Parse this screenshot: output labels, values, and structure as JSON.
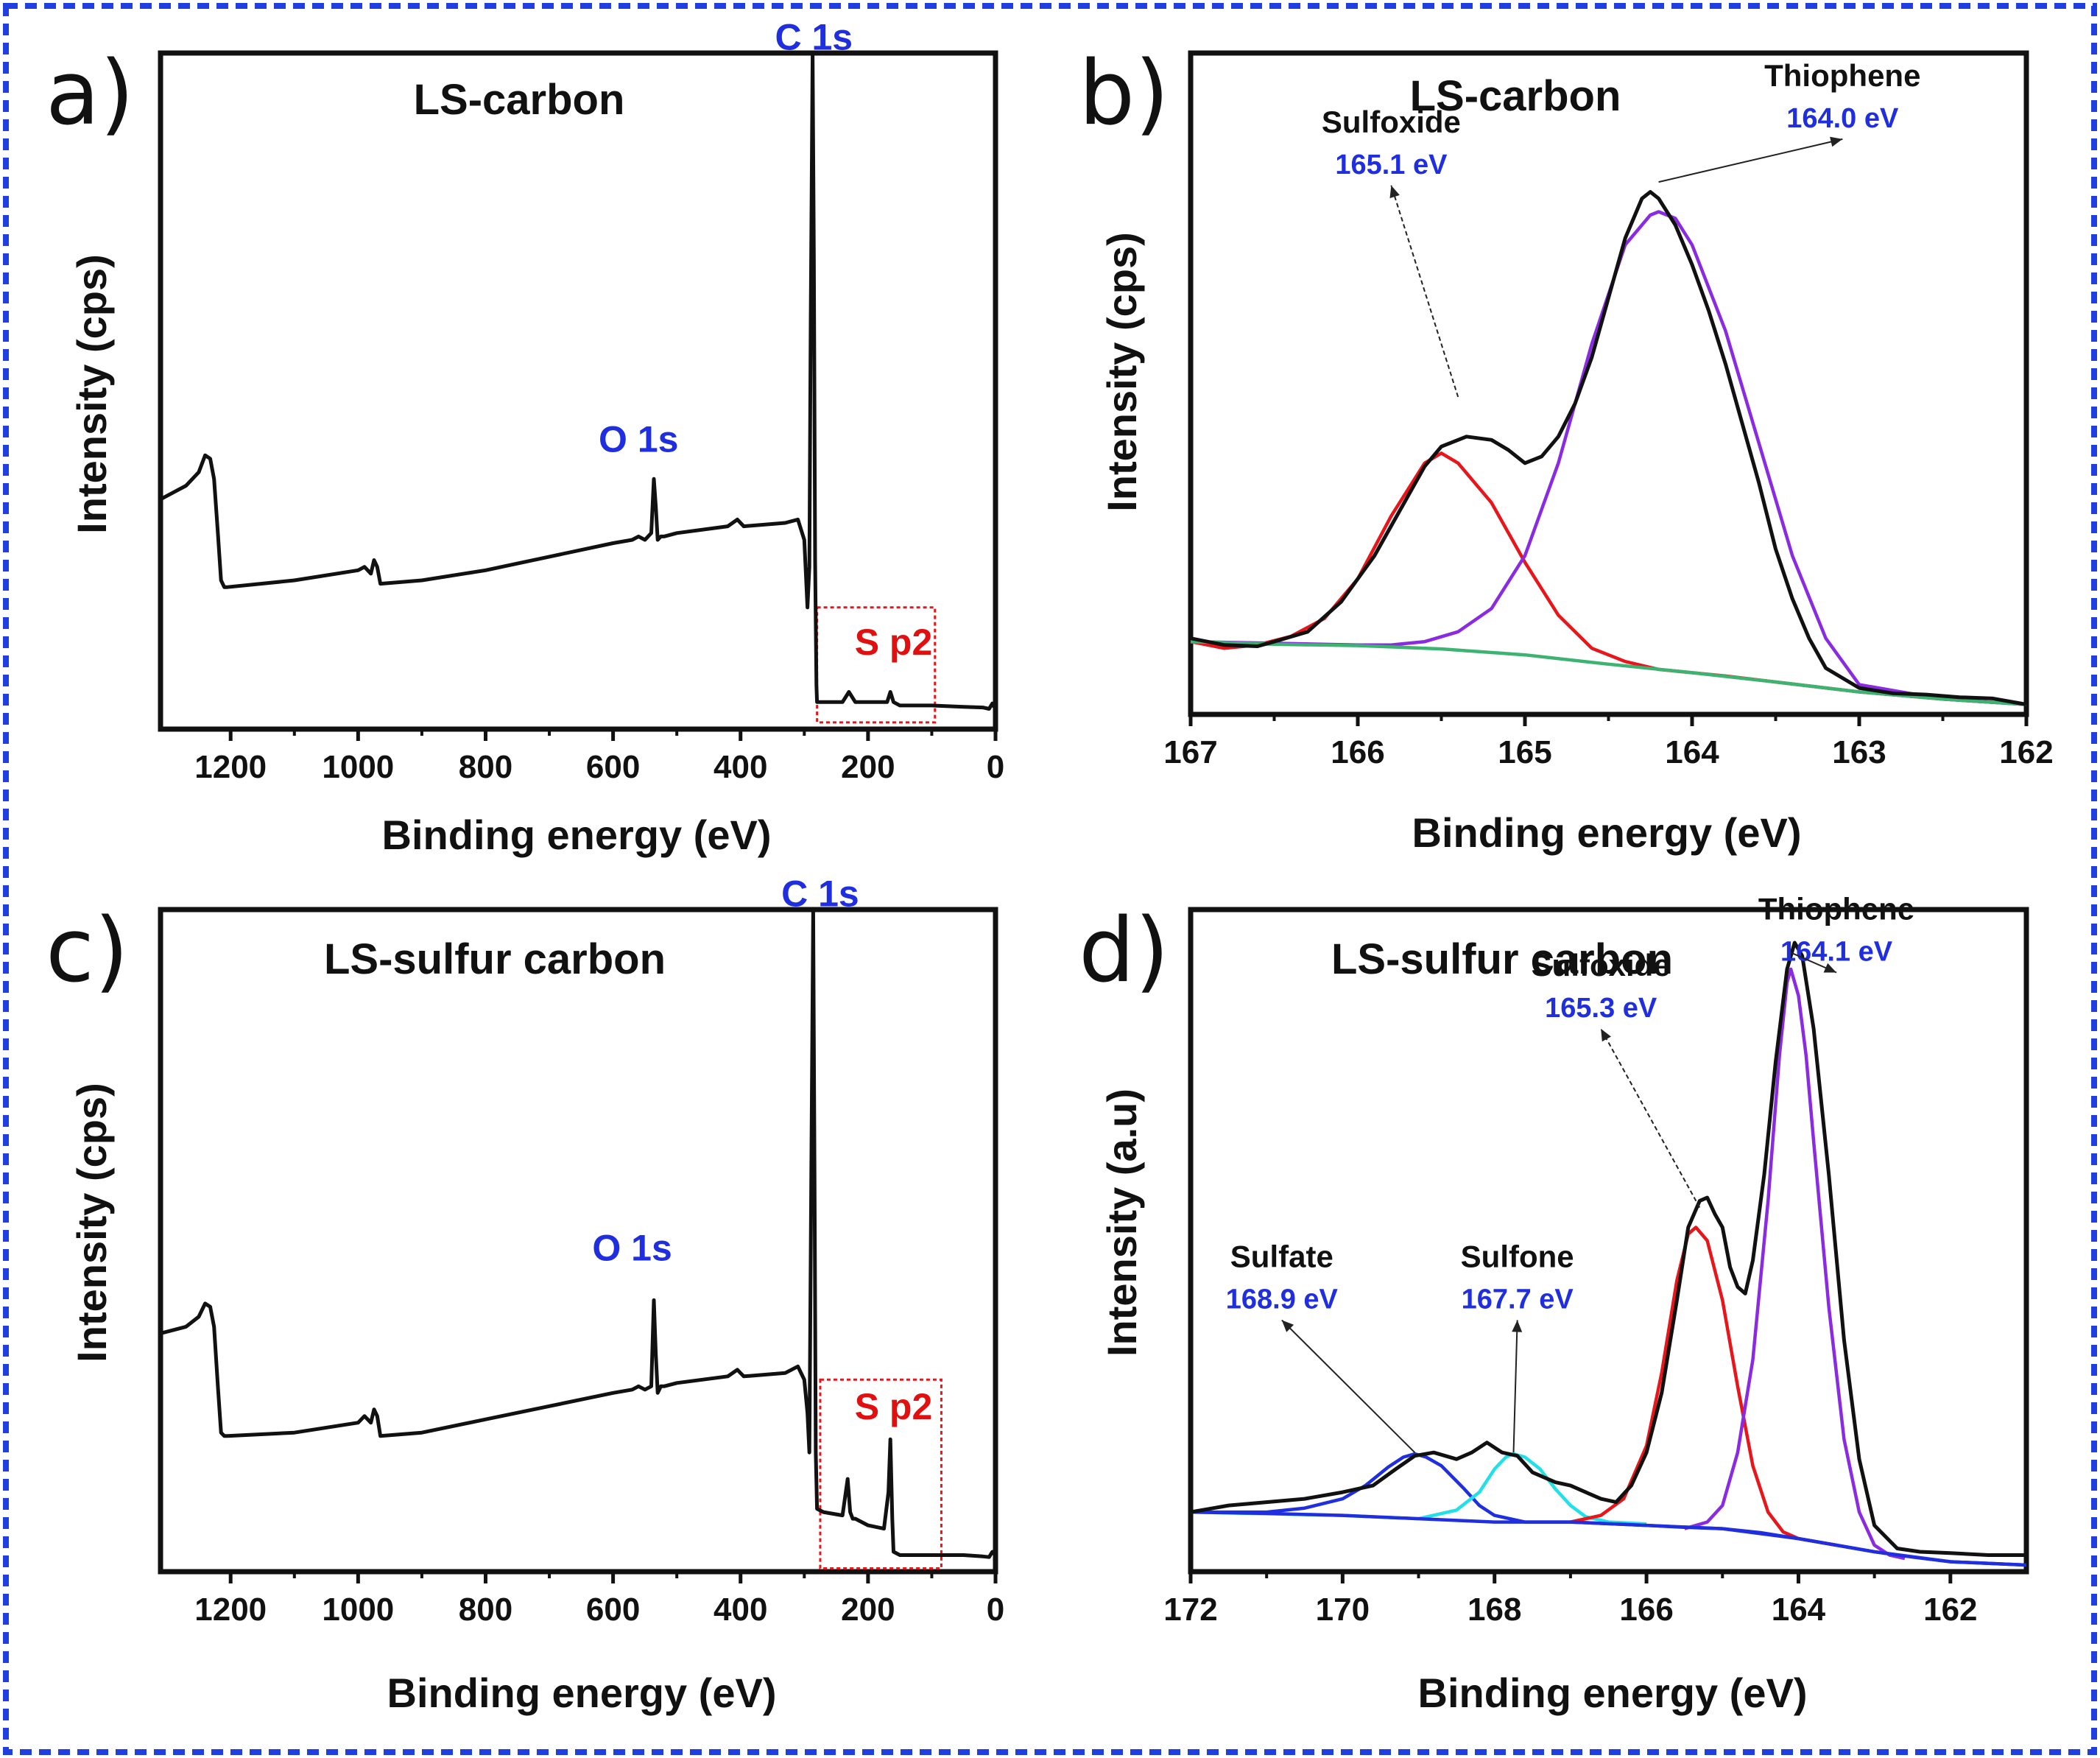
{
  "colors": {
    "frame": "#1f3fe0",
    "black": "#111111",
    "red": "#e8161b",
    "purple": "#8a2be2",
    "green": "#3cb371",
    "cyan": "#22e0e8",
    "blue": "#1f2fe0"
  },
  "chart_data": [
    {
      "id": "a",
      "panel_letter": "a)",
      "type": "line",
      "title": "LS-carbon",
      "xlabel": "Binding energy (eV)",
      "ylabel": "Intensity (cps)",
      "xlim": [
        1310,
        0
      ],
      "ylim": [
        0,
        100
      ],
      "xticks": [
        1200,
        1000,
        800,
        600,
        400,
        200,
        0
      ],
      "tick_labels": [
        "1200",
        "1000",
        "800",
        "600",
        "400",
        "200",
        "0"
      ],
      "peak_labels": [
        {
          "text": "C 1s",
          "x": 285,
          "y": 100.5,
          "color": "blue"
        },
        {
          "text": "O 1s",
          "x": 560,
          "y": 41,
          "color": "blue"
        },
        {
          "text": "S p2",
          "x": 160,
          "y": 11,
          "color": "red"
        }
      ],
      "highlight_box": {
        "x": [
          280,
          95
        ],
        "y": [
          1,
          18
        ]
      },
      "series": [
        {
          "name": "survey",
          "color": "black",
          "x": [
            1310,
            1290,
            1270,
            1250,
            1240,
            1232,
            1226,
            1220,
            1215,
            1210,
            1205,
            1100,
            1000,
            990,
            980,
            975,
            970,
            965,
            900,
            800,
            700,
            600,
            570,
            560,
            550,
            540,
            536,
            533,
            530,
            525,
            520,
            500,
            420,
            405,
            400,
            395,
            330,
            310,
            300,
            295,
            292,
            290,
            287,
            285,
            283,
            281,
            280,
            270,
            240,
            230,
            220,
            200,
            170,
            165,
            160,
            150,
            100,
            50,
            20,
            10,
            5,
            0
          ],
          "y": [
            34,
            35,
            36,
            38,
            40.5,
            40,
            37,
            29,
            22,
            21,
            21,
            22,
            23.5,
            24,
            23,
            25,
            24,
            21.5,
            22,
            23.5,
            25.5,
            27.5,
            28,
            28.5,
            28,
            29,
            37,
            33,
            28,
            28.5,
            28.5,
            29,
            30,
            31,
            30.5,
            30,
            30.5,
            31,
            28,
            18,
            24,
            60,
            100,
            70,
            25,
            6.5,
            4,
            4,
            4,
            5.5,
            4,
            4,
            4,
            5.5,
            4,
            3.5,
            3.5,
            3.3,
            3.2,
            3,
            3.8,
            3
          ]
        }
      ]
    },
    {
      "id": "b",
      "panel_letter": "b)",
      "type": "line",
      "title": "LS-carbon",
      "xlabel": "Binding energy (eV)",
      "ylabel": "Intensity (cps)",
      "xlim": [
        167,
        162
      ],
      "ylim": [
        0,
        100
      ],
      "xticks": [
        167,
        166,
        165,
        164,
        163,
        162
      ],
      "tick_labels": [
        "167",
        "166",
        "165",
        "164",
        "163",
        "162"
      ],
      "annotations": [
        {
          "name": "Sulfoxide",
          "value": "165.1 eV",
          "label_x": 165.8,
          "label_y": 88,
          "point_x": 165.4,
          "point_y": 48
        },
        {
          "name": "Thiophene",
          "value": "164.0 eV",
          "label_x": 163.1,
          "label_y": 95,
          "point_x": 164.2,
          "point_y": 80.5
        }
      ],
      "series": [
        {
          "name": "measured",
          "color": "black",
          "x": [
            167,
            166.8,
            166.6,
            166.5,
            166.3,
            166.1,
            165.9,
            165.7,
            165.6,
            165.5,
            165.35,
            165.2,
            165.1,
            165,
            164.9,
            164.8,
            164.7,
            164.6,
            164.5,
            164.4,
            164.3,
            164.25,
            164.2,
            164.1,
            164,
            163.9,
            163.8,
            163.7,
            163.6,
            163.5,
            163.4,
            163.3,
            163.2,
            163,
            162.8,
            162.6,
            162.4,
            162.2,
            162
          ],
          "y": [
            11.5,
            10.5,
            10.3,
            11,
            12.5,
            17,
            24,
            33,
            37.5,
            40.5,
            42,
            41.5,
            40,
            38,
            39,
            42,
            47,
            54,
            63,
            72,
            78,
            79,
            78,
            74,
            68,
            61,
            53,
            44,
            35,
            25,
            17.5,
            11.5,
            7,
            4,
            3.2,
            3,
            2.6,
            2.4,
            1.5
          ]
        },
        {
          "name": "Sulfoxide fit",
          "color": "red",
          "x": [
            167,
            166.8,
            166.6,
            166.4,
            166.2,
            166,
            165.8,
            165.6,
            165.5,
            165.4,
            165.2,
            165,
            164.8,
            164.6,
            164.4,
            164.2,
            164,
            163.8,
            163.5,
            163,
            162.5,
            162
          ],
          "y": [
            11,
            10,
            10.5,
            11.8,
            14.5,
            20.5,
            30,
            38,
            39.5,
            38,
            32,
            23,
            15,
            10,
            8,
            6.8,
            6.3,
            5.8,
            4.9,
            3.4,
            2.3,
            1.5
          ]
        },
        {
          "name": "Thiophene fit",
          "color": "purple",
          "x": [
            167,
            166,
            165.8,
            165.6,
            165.4,
            165.2,
            165,
            164.8,
            164.6,
            164.4,
            164.25,
            164.2,
            164.1,
            164,
            163.8,
            163.6,
            163.4,
            163.2,
            163,
            162.5,
            162
          ],
          "y": [
            11,
            10.5,
            10.5,
            11,
            12.5,
            16,
            24,
            38,
            56,
            71,
            75.5,
            76,
            75,
            71,
            58,
            41,
            24,
            11.5,
            4.5,
            2.3,
            1.5
          ]
        },
        {
          "name": "Background",
          "color": "green",
          "x": [
            167,
            166.5,
            166,
            165.5,
            165,
            164.5,
            164,
            163.5,
            163,
            162.5,
            162
          ],
          "y": [
            11,
            10.6,
            10.4,
            9.9,
            9,
            7.6,
            6.3,
            4.9,
            3.4,
            2.3,
            1.5
          ]
        }
      ]
    },
    {
      "id": "c",
      "panel_letter": "c)",
      "type": "line",
      "title": "LS-sulfur carbon",
      "xlabel": "Binding energy (eV)",
      "ylabel": "Intensity (cps)",
      "xlim": [
        1310,
        0
      ],
      "ylim": [
        0,
        100
      ],
      "xticks": [
        1200,
        1000,
        800,
        600,
        400,
        200,
        0
      ],
      "tick_labels": [
        "1200",
        "1000",
        "800",
        "600",
        "400",
        "200",
        "0"
      ],
      "peak_labels": [
        {
          "text": "C 1s",
          "x": 275,
          "y": 100.5,
          "color": "blue"
        },
        {
          "text": "O 1s",
          "x": 570,
          "y": 47,
          "color": "blue"
        },
        {
          "text": "S p2",
          "x": 160,
          "y": 23,
          "color": "red"
        }
      ],
      "highlight_box": {
        "x": [
          275,
          85
        ],
        "y": [
          0.5,
          29
        ]
      },
      "series": [
        {
          "name": "survey",
          "color": "black",
          "x": [
            1310,
            1290,
            1270,
            1250,
            1240,
            1232,
            1226,
            1220,
            1215,
            1210,
            1205,
            1100,
            1000,
            990,
            980,
            975,
            970,
            965,
            900,
            800,
            700,
            600,
            570,
            560,
            550,
            540,
            536,
            533,
            530,
            525,
            520,
            500,
            420,
            405,
            400,
            395,
            330,
            310,
            300,
            295,
            292,
            289,
            286,
            284,
            282,
            280,
            270,
            240,
            232,
            228,
            224,
            220,
            200,
            175,
            168,
            165,
            162,
            160,
            150,
            100,
            50,
            20,
            10,
            5,
            0
          ],
          "y": [
            36,
            36.5,
            37,
            38.5,
            40.5,
            40,
            37,
            28,
            21,
            20.5,
            20.5,
            21,
            22.5,
            23.5,
            22.5,
            24.5,
            23.5,
            20.5,
            21,
            23,
            25,
            27,
            27.5,
            28,
            27.5,
            28,
            41,
            33,
            27,
            28,
            28,
            28.5,
            29.5,
            30.5,
            30,
            29.5,
            30,
            31,
            29,
            24,
            18,
            60,
            100,
            60,
            18,
            9.5,
            9,
            8.5,
            14,
            9,
            8,
            8,
            7,
            6.5,
            12,
            20,
            8,
            3,
            2.5,
            2.5,
            2.5,
            2.3,
            2.2,
            3,
            2.5
          ]
        }
      ]
    },
    {
      "id": "d",
      "panel_letter": "d)",
      "type": "line",
      "title": "LS-sulfur carbon",
      "xlabel": "Binding energy (eV)",
      "ylabel": "Intensity (a.u)",
      "xlim": [
        172,
        161
      ],
      "ylim": [
        0,
        100
      ],
      "xticks": [
        172,
        170,
        168,
        166,
        164,
        162
      ],
      "tick_labels": [
        "172",
        "170",
        "168",
        "166",
        "164",
        "162"
      ],
      "annotations": [
        {
          "name": "Sulfate",
          "value": "168.9 eV",
          "label_x": 170.8,
          "label_y": 46,
          "point_x": 169.05,
          "point_y": 18
        },
        {
          "name": "Sulfone",
          "value": "167.7 eV",
          "label_x": 167.7,
          "label_y": 46,
          "point_x": 167.75,
          "point_y": 18
        },
        {
          "name": "Sulfoxide",
          "value": "165.3 eV",
          "label_x": 166.6,
          "label_y": 90,
          "point_x": 165.3,
          "point_y": 55
        },
        {
          "name": "Thiophene",
          "value": "164.1 eV",
          "label_x": 163.5,
          "label_y": 98.5,
          "point_x": 164.1,
          "point_y": 93.5
        }
      ],
      "series": [
        {
          "name": "measured",
          "color": "black",
          "x": [
            172,
            171.5,
            171,
            170.5,
            170,
            169.6,
            169.3,
            169.05,
            168.8,
            168.5,
            168.3,
            168.1,
            167.9,
            167.7,
            167.5,
            167.2,
            167,
            166.8,
            166.6,
            166.4,
            166.2,
            166,
            165.8,
            165.6,
            165.45,
            165.3,
            165.2,
            165.1,
            165,
            164.9,
            164.8,
            164.7,
            164.6,
            164.45,
            164.3,
            164.15,
            164.05,
            163.95,
            163.8,
            163.6,
            163.4,
            163.2,
            163,
            162.7,
            162.4,
            162,
            161.5,
            161
          ],
          "y": [
            9,
            10,
            10.5,
            11,
            12,
            13,
            15.5,
            17.5,
            18,
            17,
            18,
            19.5,
            18,
            17.5,
            15,
            13.5,
            13,
            12,
            11,
            10.5,
            13,
            18,
            27,
            41,
            52,
            56,
            56.5,
            54,
            52,
            46,
            43,
            42,
            47,
            60,
            77,
            91,
            95,
            93,
            82,
            60,
            35,
            17,
            7,
            3.5,
            3,
            2.8,
            2.5,
            2.5
          ]
        },
        {
          "name": "Sulfate fit",
          "color": "blue",
          "x": [
            172,
            171,
            170.5,
            170,
            169.7,
            169.4,
            169.2,
            169.05,
            168.9,
            168.7,
            168.4,
            168.2,
            168,
            167.6,
            167,
            166,
            165,
            164,
            163,
            162,
            161
          ],
          "y": [
            9,
            9,
            9.6,
            11,
            13,
            15.8,
            17.3,
            17.8,
            17.3,
            16,
            12.5,
            10,
            8.5,
            7.5,
            7.5,
            7,
            6.5,
            5,
            3,
            1.5,
            1
          ]
        },
        {
          "name": "Sulfone fit",
          "color": "cyan",
          "x": [
            172,
            170,
            169,
            168.5,
            168.2,
            168,
            167.85,
            167.75,
            167.6,
            167.4,
            167.2,
            167,
            166.8,
            166.5,
            166
          ],
          "y": [
            9,
            8.5,
            8,
            9.3,
            12,
            15.5,
            17.3,
            17.8,
            17.3,
            15.5,
            12.5,
            10,
            8.3,
            7.5,
            7.2
          ]
        },
        {
          "name": "Sulfoxide fit",
          "color": "red",
          "x": [
            167,
            166.6,
            166.3,
            166,
            165.8,
            165.6,
            165.45,
            165.35,
            165.2,
            165,
            164.8,
            164.6,
            164.4,
            164.2,
            164,
            163.5
          ],
          "y": [
            7.5,
            8.5,
            11,
            19,
            30,
            44,
            51,
            52,
            50,
            41,
            28,
            16,
            9,
            6,
            5,
            4
          ]
        },
        {
          "name": "Thiophene fit",
          "color": "purple",
          "x": [
            165.5,
            165.2,
            165,
            164.8,
            164.6,
            164.4,
            164.25,
            164.15,
            164.1,
            164,
            163.9,
            163.8,
            163.6,
            163.4,
            163.2,
            163,
            162.8,
            162.6
          ],
          "y": [
            6.5,
            7.5,
            10,
            18,
            32,
            56,
            78,
            89,
            91,
            87,
            78,
            65,
            40,
            20,
            9,
            4,
            2.5,
            2
          ]
        },
        {
          "name": "Background",
          "color": "blue",
          "x": [
            172,
            171,
            170,
            169,
            168,
            167,
            166,
            165.5,
            165,
            164.5,
            164,
            163.5,
            163,
            162.5,
            162,
            161
          ],
          "y": [
            9,
            8.8,
            8.5,
            8,
            7.5,
            7.5,
            7,
            6.7,
            6.5,
            5.9,
            5,
            4,
            3,
            2.2,
            1.5,
            1
          ]
        }
      ]
    }
  ]
}
